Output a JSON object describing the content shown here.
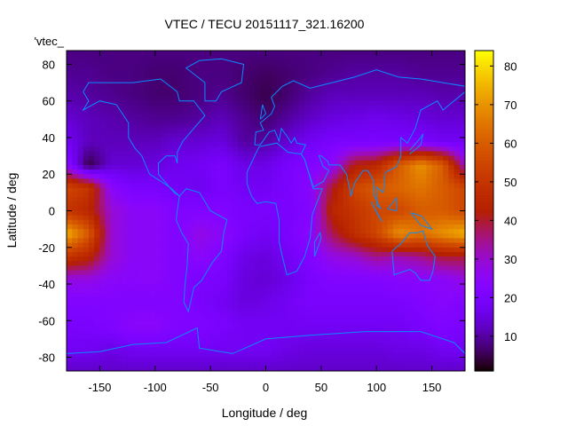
{
  "chart_data": {
    "type": "heatmap",
    "title": "VTEC / TECU 20151117_321.16200",
    "xlabel": "Longitude / deg",
    "ylabel": "Latitude / deg",
    "legend_label": "'vtec_",
    "xlim": [
      -180,
      180
    ],
    "ylim": [
      -87.5,
      87.5
    ],
    "xticks": [
      -150,
      -100,
      -50,
      0,
      50,
      100,
      150
    ],
    "yticks": [
      -80,
      -60,
      -40,
      -20,
      0,
      20,
      40,
      60,
      80
    ],
    "colorbar": {
      "range": [
        1,
        84
      ],
      "ticks": [
        10,
        20,
        30,
        40,
        50,
        60,
        70,
        80
      ],
      "palette": "black-blue-violet-yellow"
    },
    "coastline_color": "#0a8cff",
    "grid_lon": [
      -180,
      -160,
      -140,
      -120,
      -100,
      -80,
      -60,
      -40,
      -20,
      0,
      20,
      40,
      60,
      80,
      100,
      120,
      140,
      160,
      180
    ],
    "grid_lat": [
      87.5,
      75,
      62.5,
      50,
      37.5,
      25,
      12.5,
      0,
      -12.5,
      -25,
      -37.5,
      -50,
      -62.5,
      -75,
      -87.5
    ],
    "values": [
      [
        8,
        8,
        8,
        8,
        8,
        8,
        8,
        8,
        8,
        8,
        8,
        8,
        8,
        8,
        8,
        8,
        8,
        8,
        8
      ],
      [
        9,
        9,
        8,
        8,
        7,
        7,
        8,
        8,
        7,
        6,
        7,
        8,
        9,
        10,
        10,
        10,
        9,
        9,
        9
      ],
      [
        11,
        10,
        9,
        8,
        7,
        7,
        8,
        9,
        7,
        5,
        7,
        10,
        12,
        12,
        12,
        12,
        12,
        11,
        11
      ],
      [
        14,
        12,
        11,
        10,
        9,
        9,
        10,
        12,
        9,
        7,
        10,
        13,
        15,
        16,
        17,
        16,
        15,
        14,
        14
      ],
      [
        18,
        12,
        12,
        12,
        12,
        14,
        14,
        15,
        10,
        10,
        14,
        18,
        20,
        20,
        20,
        20,
        20,
        18,
        18
      ],
      [
        25,
        4,
        14,
        14,
        15,
        17,
        18,
        20,
        16,
        16,
        20,
        22,
        25,
        42,
        45,
        60,
        70,
        60,
        30
      ],
      [
        55,
        50,
        25,
        20,
        20,
        18,
        17,
        20,
        18,
        18,
        20,
        24,
        40,
        55,
        60,
        62,
        65,
        60,
        55
      ],
      [
        50,
        45,
        30,
        25,
        25,
        22,
        22,
        22,
        20,
        20,
        20,
        22,
        45,
        50,
        55,
        55,
        60,
        60,
        55
      ],
      [
        75,
        60,
        30,
        25,
        25,
        22,
        28,
        25,
        20,
        18,
        20,
        25,
        38,
        48,
        55,
        70,
        65,
        70,
        75
      ],
      [
        50,
        45,
        30,
        25,
        25,
        22,
        25,
        22,
        16,
        15,
        18,
        22,
        28,
        30,
        35,
        32,
        35,
        40,
        40
      ],
      [
        28,
        28,
        25,
        24,
        25,
        22,
        20,
        20,
        15,
        14,
        16,
        20,
        22,
        22,
        22,
        24,
        24,
        25,
        28
      ],
      [
        22,
        22,
        22,
        22,
        22,
        22,
        20,
        18,
        15,
        16,
        18,
        20,
        20,
        20,
        20,
        20,
        22,
        24,
        22
      ],
      [
        20,
        20,
        22,
        25,
        25,
        22,
        22,
        20,
        18,
        18,
        18,
        18,
        18,
        18,
        18,
        18,
        20,
        22,
        20
      ],
      [
        18,
        18,
        16,
        18,
        18,
        18,
        18,
        18,
        18,
        18,
        16,
        15,
        15,
        15,
        15,
        16,
        16,
        18,
        18
      ],
      [
        13,
        13,
        13,
        13,
        13,
        13,
        13,
        13,
        13,
        13,
        13,
        13,
        13,
        13,
        13,
        13,
        13,
        13,
        13
      ]
    ]
  }
}
